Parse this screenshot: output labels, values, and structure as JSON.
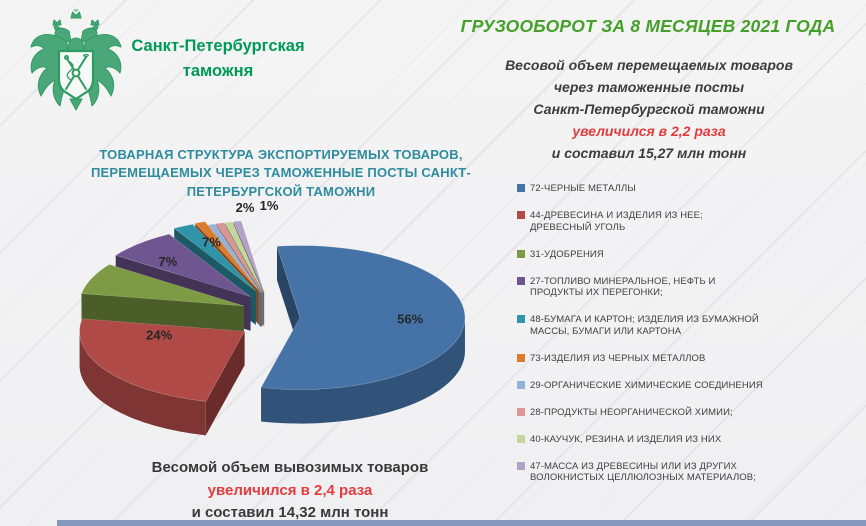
{
  "header": {
    "org_name": "Санкт-Петербургская таможня",
    "emblem_icon": "customs-eagle-emblem",
    "title": "ГРУЗООБОРОТ ЗА 8 МЕСЯЦЕВ 2021 ГОДА"
  },
  "summary_top": {
    "line1": "Весовой объем перемещаемых товаров",
    "line2": "через таможенные посты",
    "line3": "Санкт-Петербургской таможни",
    "highlight": "увеличился в 2,2 раза",
    "line4": "и составил 15,27 млн тонн"
  },
  "summary_bottom": {
    "line1": "Весомой объем вывозимых товаров",
    "highlight": "увеличился в 2,4 раза",
    "line2": "и составил 14,32  млн тонн"
  },
  "colors": {
    "brand_green": "#009a58",
    "title_green": "#45a02a",
    "chart_title_teal": "#2e8c9e",
    "highlight_red": "#e23b3e",
    "text_dark": "#3d3d3d"
  },
  "chart_data": {
    "type": "pie",
    "style": "3d-exploded",
    "title": "ТОВАРНАЯ СТРУКТУРА ЭКСПОРТИРУЕМЫХ ТОВАРОВ, ПЕРЕМЕЩАЕМЫХ ЧЕРЕЗ ТАМОЖЕННЫЕ ПОСТЫ САНКТ-ПЕТЕРБУРГСКОЙ ТАМОЖНИ",
    "legend_position": "right",
    "slices": [
      {
        "label": "72-ЧЕРНЫЕ МЕТАЛЛЫ",
        "value": 56,
        "display": "56%",
        "color": "#4573A8"
      },
      {
        "label": "44-ДРЕВЕСИНА И ИЗДЕЛИЯ ИЗ НЕЕ; ДРЕВЕСНЫЙ УГОЛЬ",
        "value": 24,
        "display": "24%",
        "color": "#B04A47"
      },
      {
        "label": "31-УДОБРЕНИЯ",
        "value": 7,
        "display": "7%",
        "color": "#7D9B44"
      },
      {
        "label": "27-ТОПЛИВО МИНЕРАЛЬНОЕ, НЕФТЬ И ПРОДУКТЫ ИХ ПЕРЕГОНКИ;",
        "value": 7,
        "display": "7%",
        "color": "#6F5691"
      },
      {
        "label": "48-БУМАГА И КАРТОН; ИЗДЕЛИЯ ИЗ БУМАЖНОЙ МАССЫ, БУМАГИ ИЛИ КАРТОНА",
        "value": 2,
        "display": "2%",
        "color": "#3093A9"
      },
      {
        "label": "73-ИЗДЕЛИЯ ИЗ ЧЕРНЫХ МЕТАЛЛОВ",
        "value": 1,
        "display": "1%",
        "color": "#DD7B2D"
      },
      {
        "label": "29-ОРГАНИЧЕСКИЕ ХИМИЧЕСКИЕ СОЕДИНЕНИЯ",
        "value": 0.75,
        "display": "",
        "color": "#95B3D7"
      },
      {
        "label": "28-ПРОДУКТЫ НЕОРГАНИЧЕСКОЙ ХИМИИ;",
        "value": 0.75,
        "display": "",
        "color": "#D99694"
      },
      {
        "label": "40-КАУЧУК, РЕЗИНА И ИЗДЕЛИЯ ИЗ НИХ",
        "value": 0.75,
        "display": "",
        "color": "#C3D69B"
      },
      {
        "label": "47-МАССА ИЗ ДРЕВЕСИНЫ ИЛИ ИЗ ДРУГИХ ВОЛОКНИСТЫХ ЦЕЛЛЮЛОЗНЫХ МАТЕРИАЛОВ;",
        "value": 0.75,
        "display": "",
        "color": "#B3A2C7"
      }
    ]
  }
}
